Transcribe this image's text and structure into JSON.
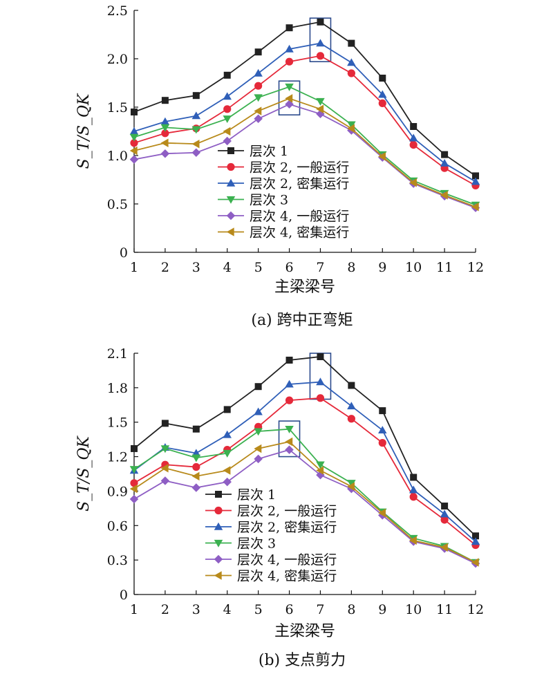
{
  "charts": [
    {
      "caption": "(a) 跨中正弯矩",
      "xlabel": "主梁梁号",
      "ylabel": "S_T/S_QK"
    },
    {
      "caption": "(b) 支点剪力",
      "xlabel": "主梁梁号",
      "ylabel": "S_T/S_QK"
    }
  ],
  "chart_data": [
    {
      "type": "line",
      "title": "(a) 跨中正弯矩",
      "xlabel": "主梁梁号",
      "ylabel": "S_T/S_QK",
      "x": [
        1,
        2,
        3,
        4,
        5,
        6,
        7,
        8,
        9,
        10,
        11,
        12
      ],
      "xlim": [
        1,
        12
      ],
      "ylim": [
        0,
        2.5
      ],
      "yticks": [
        0,
        0.5,
        1.0,
        1.5,
        2.0,
        2.5
      ],
      "ytick_labels": [
        "0",
        "0.5",
        "1.0",
        "1.5",
        "2.0",
        "2.5"
      ],
      "xtick_labels": [
        "1",
        "2",
        "3",
        "4",
        "5",
        "6",
        "7",
        "8",
        "9",
        "10",
        "11",
        "12"
      ],
      "legend_position": "center",
      "highlight_boxes": [
        {
          "x": 7,
          "y_range": [
            1.97,
            2.42
          ]
        },
        {
          "x": 6,
          "y_range": [
            1.42,
            1.77
          ]
        }
      ],
      "series": [
        {
          "name": "层次 1",
          "color": "#222222",
          "marker": "square",
          "values": [
            1.45,
            1.57,
            1.62,
            1.83,
            2.07,
            2.32,
            2.38,
            2.16,
            1.8,
            1.3,
            1.01,
            0.79
          ]
        },
        {
          "name": "层次 2, 一般运行",
          "color": "#e5293a",
          "marker": "circle",
          "values": [
            1.13,
            1.23,
            1.28,
            1.48,
            1.72,
            1.97,
            2.03,
            1.85,
            1.54,
            1.11,
            0.87,
            0.69
          ]
        },
        {
          "name": "层次 2, 密集运行",
          "color": "#2f5fb8",
          "marker": "triangle-up",
          "values": [
            1.25,
            1.35,
            1.41,
            1.61,
            1.85,
            2.1,
            2.16,
            1.96,
            1.63,
            1.18,
            0.92,
            0.73
          ]
        },
        {
          "name": "层次 3",
          "color": "#3bb150",
          "marker": "triangle-down",
          "values": [
            1.19,
            1.29,
            1.27,
            1.38,
            1.6,
            1.71,
            1.56,
            1.32,
            1.01,
            0.74,
            0.61,
            0.49
          ]
        },
        {
          "name": "层次 4, 一般运行",
          "color": "#8e5ec4",
          "marker": "diamond",
          "values": [
            0.96,
            1.02,
            1.03,
            1.15,
            1.38,
            1.53,
            1.43,
            1.26,
            0.98,
            0.71,
            0.58,
            0.46
          ]
        },
        {
          "name": "层次 4, 密集运行",
          "color": "#b88a1b",
          "marker": "triangle-left",
          "values": [
            1.05,
            1.13,
            1.12,
            1.25,
            1.46,
            1.59,
            1.48,
            1.28,
            0.99,
            0.72,
            0.59,
            0.47
          ]
        }
      ]
    },
    {
      "type": "line",
      "title": "(b) 支点剪力",
      "xlabel": "主梁梁号",
      "ylabel": "S_T/S_QK",
      "x": [
        1,
        2,
        3,
        4,
        5,
        6,
        7,
        8,
        9,
        10,
        11,
        12
      ],
      "xlim": [
        1,
        12
      ],
      "ylim": [
        0,
        2.1
      ],
      "yticks": [
        0,
        0.3,
        0.6,
        0.9,
        1.2,
        1.5,
        1.8,
        2.1
      ],
      "ytick_labels": [
        "0",
        "0.3",
        "0.6",
        "0.9",
        "1.2",
        "1.5",
        "1.8",
        "2.1"
      ],
      "xtick_labels": [
        "1",
        "2",
        "3",
        "4",
        "5",
        "6",
        "7",
        "8",
        "9",
        "10",
        "11",
        "12"
      ],
      "legend_position": "bottom-center",
      "highlight_boxes": [
        {
          "x": 7,
          "y_range": [
            1.7,
            2.1
          ]
        },
        {
          "x": 6,
          "y_range": [
            1.2,
            1.51
          ]
        }
      ],
      "series": [
        {
          "name": "层次 1",
          "color": "#222222",
          "marker": "square",
          "values": [
            1.27,
            1.49,
            1.44,
            1.61,
            1.81,
            2.04,
            2.07,
            1.82,
            1.6,
            1.02,
            0.77,
            0.51
          ]
        },
        {
          "name": "层次 2, 一般运行",
          "color": "#e5293a",
          "marker": "circle",
          "values": [
            0.97,
            1.13,
            1.11,
            1.26,
            1.46,
            1.69,
            1.71,
            1.53,
            1.32,
            0.85,
            0.65,
            0.43
          ]
        },
        {
          "name": "层次 2, 密集运行",
          "color": "#2f5fb8",
          "marker": "triangle-up",
          "values": [
            1.08,
            1.28,
            1.23,
            1.39,
            1.59,
            1.83,
            1.85,
            1.64,
            1.43,
            0.91,
            0.7,
            0.46
          ]
        },
        {
          "name": "层次 3",
          "color": "#3bb150",
          "marker": "triangle-down",
          "values": [
            1.09,
            1.27,
            1.19,
            1.23,
            1.42,
            1.44,
            1.13,
            0.97,
            0.72,
            0.49,
            0.42,
            0.28
          ]
        },
        {
          "name": "层次 4, 一般运行",
          "color": "#8e5ec4",
          "marker": "diamond",
          "values": [
            0.83,
            0.99,
            0.93,
            0.98,
            1.18,
            1.26,
            1.04,
            0.92,
            0.69,
            0.46,
            0.4,
            0.27
          ]
        },
        {
          "name": "层次 4, 密集运行",
          "color": "#b88a1b",
          "marker": "triangle-left",
          "values": [
            0.92,
            1.1,
            1.03,
            1.08,
            1.27,
            1.33,
            1.08,
            0.94,
            0.71,
            0.47,
            0.41,
            0.28
          ]
        }
      ]
    }
  ]
}
